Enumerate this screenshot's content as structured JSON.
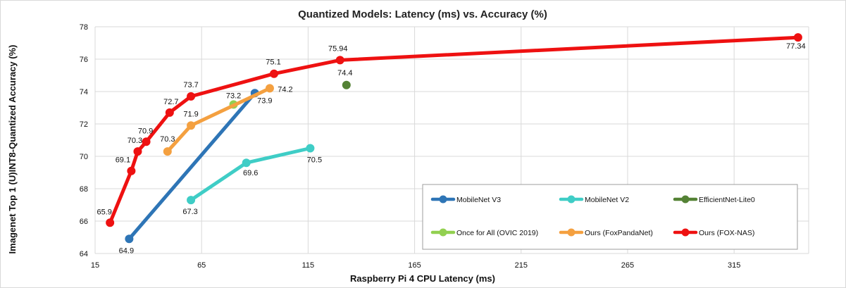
{
  "chart_data": {
    "type": "line",
    "title": "Quantized Models: Latency (ms) vs. Accuracy (%)",
    "xlabel": "Raspberry Pi 4 CPU Latency (ms)",
    "ylabel": "Imagenet Top 1 (U)INT8-Quantized Accuracy (%)",
    "xlim": [
      15,
      350
    ],
    "ylim": [
      64,
      78
    ],
    "xticks": [
      15,
      65,
      115,
      165,
      215,
      265,
      315
    ],
    "yticks": [
      64,
      66,
      68,
      70,
      72,
      74,
      76,
      78
    ],
    "grid": true,
    "legend_position": "bottom-right",
    "series": [
      {
        "name": "MobileNet V3",
        "color": "#2e75b6",
        "points": [
          {
            "x": 31,
            "y": 64.9
          },
          {
            "x": 90,
            "y": 73.9
          }
        ],
        "labels": [
          "64.9",
          "73.9"
        ]
      },
      {
        "name": "MobileNet V2",
        "color": "#3fcdc6",
        "points": [
          {
            "x": 60,
            "y": 67.3
          },
          {
            "x": 86,
            "y": 69.6
          },
          {
            "x": 116,
            "y": 70.5
          }
        ],
        "labels": [
          "67.3",
          "69.6",
          "70.5"
        ]
      },
      {
        "name": "EfficientNet-Lite0",
        "color": "#548235",
        "points": [
          {
            "x": 133,
            "y": 74.4
          }
        ],
        "labels": [
          "74.4"
        ]
      },
      {
        "name": "Once for All (OVIC 2019)",
        "color": "#92d050",
        "points": [
          {
            "x": 80,
            "y": 73.2
          }
        ],
        "labels": [
          "73.2"
        ]
      },
      {
        "name": "Ours (FoxPandaNet)",
        "color": "#f4a040",
        "points": [
          {
            "x": 49,
            "y": 70.3
          },
          {
            "x": 60,
            "y": 71.9
          },
          {
            "x": 97,
            "y": 74.2
          }
        ],
        "labels": [
          "70.3",
          "71.9",
          "74.2"
        ]
      },
      {
        "name": "Ours (FOX-NAS)",
        "color": "#ee1111",
        "points": [
          {
            "x": 22,
            "y": 65.9
          },
          {
            "x": 32,
            "y": 69.1
          },
          {
            "x": 35,
            "y": 70.3
          },
          {
            "x": 39,
            "y": 70.9
          },
          {
            "x": 50,
            "y": 72.7
          },
          {
            "x": 60,
            "y": 73.7
          },
          {
            "x": 99,
            "y": 75.1
          },
          {
            "x": 130,
            "y": 75.94
          },
          {
            "x": 345,
            "y": 77.34
          }
        ],
        "labels": [
          "65.9",
          "69.1",
          "70.3",
          "70.9",
          "72.7",
          "73.7",
          "75.1",
          "75.94",
          "77.34"
        ]
      }
    ]
  }
}
